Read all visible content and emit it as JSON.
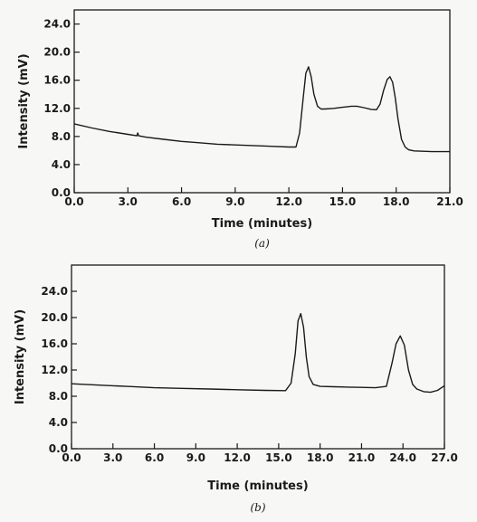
{
  "chart_data": [
    {
      "type": "line",
      "caption": "(a)",
      "xlabel": "Time (minutes)",
      "ylabel": "Intensity (mV)",
      "xlim": [
        0,
        21
      ],
      "ylim": [
        0,
        26
      ],
      "xticks": [
        0,
        3,
        6,
        9,
        12,
        15,
        18,
        21
      ],
      "xtick_labels": [
        "0.0",
        "3.0",
        "6.0",
        "9.0",
        "12.0",
        "15.0",
        "18.0",
        "21.0"
      ],
      "yticks": [
        0,
        4,
        8,
        12,
        16,
        20,
        24
      ],
      "ytick_labels": [
        "0.0",
        "4.0",
        "8.0",
        "12.0",
        "16.0",
        "20.0",
        "24.0"
      ],
      "grid": false,
      "series": [
        {
          "x": [
            0,
            1,
            2,
            3,
            3.5,
            3.55,
            3.6,
            4,
            5,
            6,
            7,
            8,
            9,
            10,
            11,
            12,
            12.4,
            12.6,
            12.8,
            12.95,
            13.1,
            13.25,
            13.4,
            13.6,
            13.8,
            14,
            14.5,
            15,
            15.5,
            15.8,
            16.2,
            16.6,
            16.9,
            17.1,
            17.3,
            17.5,
            17.65,
            17.8,
            17.95,
            18.1,
            18.3,
            18.5,
            18.7,
            19,
            19.5,
            20,
            20.5,
            21
          ],
          "y": [
            9.8,
            9.2,
            8.7,
            8.3,
            8.1,
            8.5,
            8.1,
            7.9,
            7.6,
            7.3,
            7.1,
            6.9,
            6.8,
            6.7,
            6.6,
            6.5,
            6.5,
            8.5,
            13.5,
            17.0,
            17.9,
            16.5,
            14.0,
            12.3,
            11.9,
            11.9,
            12.0,
            12.15,
            12.3,
            12.3,
            12.1,
            11.85,
            11.8,
            12.6,
            14.6,
            16.1,
            16.5,
            15.7,
            13.5,
            10.5,
            7.6,
            6.5,
            6.1,
            5.95,
            5.9,
            5.85,
            5.85,
            5.85
          ]
        }
      ]
    },
    {
      "type": "line",
      "caption": "(b)",
      "xlabel": "Time (minutes)",
      "ylabel": "Intensity (mV)",
      "xlim": [
        0,
        27
      ],
      "ylim": [
        0,
        28
      ],
      "xticks": [
        0,
        3,
        6,
        9,
        12,
        15,
        18,
        21,
        24,
        27
      ],
      "xtick_labels": [
        "0.0",
        "3.0",
        "6.0",
        "9.0",
        "12.0",
        "15.0",
        "18.0",
        "21.0",
        "24.0",
        "27.0"
      ],
      "yticks": [
        0,
        4,
        8,
        12,
        16,
        20,
        24
      ],
      "ytick_labels": [
        "0.0",
        "4.0",
        "8.0",
        "12.0",
        "16.0",
        "20.0",
        "24.0"
      ],
      "grid": false,
      "series": [
        {
          "x": [
            0,
            2,
            4,
            6,
            8,
            10,
            12,
            14,
            15.5,
            15.9,
            16.2,
            16.4,
            16.6,
            16.8,
            17.0,
            17.2,
            17.5,
            18,
            19,
            20,
            21,
            22,
            22.8,
            23.2,
            23.5,
            23.8,
            24.1,
            24.4,
            24.7,
            25,
            25.5,
            26,
            26.5,
            27
          ],
          "y": [
            9.9,
            9.7,
            9.5,
            9.3,
            9.2,
            9.1,
            9.0,
            8.9,
            8.85,
            10.0,
            14.5,
            19.5,
            20.6,
            18.5,
            14.0,
            11.0,
            9.8,
            9.5,
            9.45,
            9.4,
            9.35,
            9.3,
            9.5,
            13.0,
            16.0,
            17.2,
            15.8,
            12.0,
            9.8,
            9.1,
            8.7,
            8.6,
            8.9,
            9.6
          ]
        }
      ]
    }
  ]
}
